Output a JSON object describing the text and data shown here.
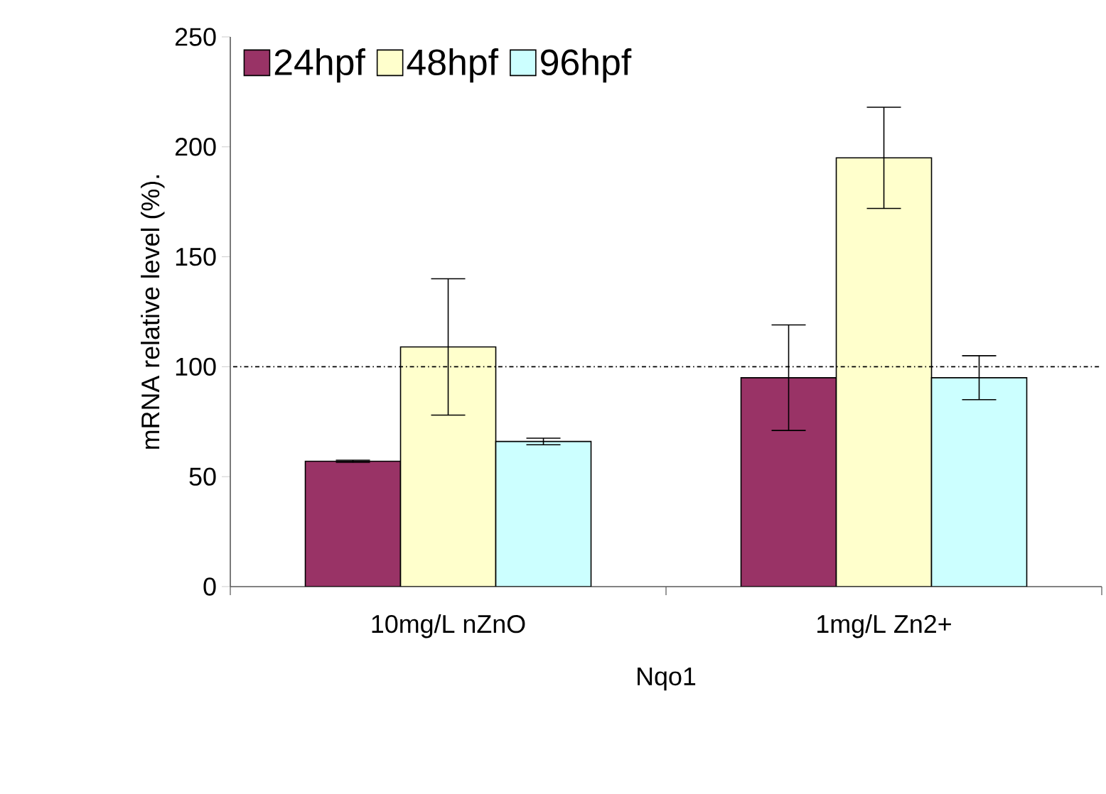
{
  "chart_data": {
    "type": "bar",
    "categories": [
      "10mg/L nZnO",
      "1mg/L Zn2+"
    ],
    "xlabel": "Nqo1",
    "ylabel": "mRNA relative level (%).",
    "series": [
      {
        "name": "24hpf",
        "color": "#993366",
        "values": [
          57,
          95
        ],
        "errors": [
          0.5,
          24
        ]
      },
      {
        "name": "48hpf",
        "color": "#ffffcc",
        "values": [
          109,
          195
        ],
        "errors": [
          31,
          23
        ]
      },
      {
        "name": "96hpf",
        "color": "#ccffff",
        "values": [
          66,
          95
        ],
        "errors": [
          1.5,
          10
        ]
      }
    ],
    "ylim": [
      0,
      250
    ],
    "yticks": [
      0,
      50,
      100,
      150,
      200,
      250
    ],
    "ref_lines": [
      {
        "axis": "y",
        "value": 100,
        "line_style": "dashdot"
      }
    ],
    "legend": "top left",
    "grid": false
  }
}
